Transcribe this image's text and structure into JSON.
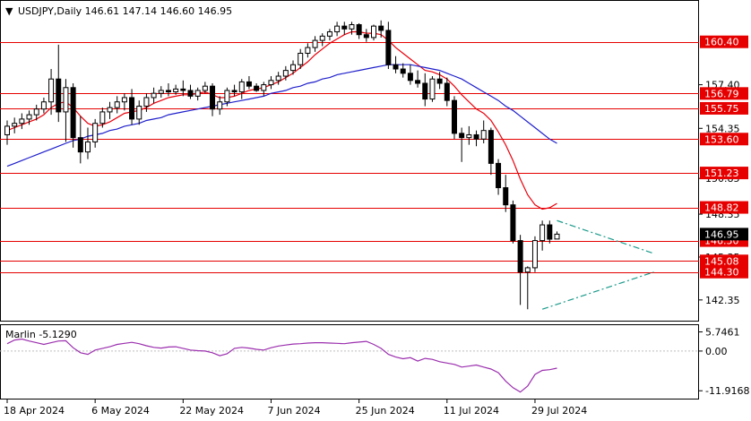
{
  "header": {
    "menu_arrow": "▼",
    "title": "USDJPY,Daily  146.61 147.14 146.60 146.95"
  },
  "colors": {
    "bull": "#ffffff",
    "bear": "#000000",
    "fast_ma": "#e8000b",
    "slow_ma": "#1f1fcc",
    "level_line": "#e60000",
    "level_label": "#e60000",
    "triangle": "#1a9a8a",
    "oscillator": "#9b2fae",
    "current_label": "#000000"
  },
  "chart_data": [
    {
      "type": "candlestick",
      "symbol": "USDJPY",
      "timeframe": "Daily",
      "ohlc_header": {
        "open": 146.61,
        "high": 147.14,
        "low": 146.6,
        "close": 146.95
      },
      "ylim": [
        140.9,
        163.2
      ],
      "y_ticks": [
        {
          "label": "157.40",
          "value": 157.4
        },
        {
          "label": "154.35",
          "value": 154.35
        },
        {
          "label": "150.85",
          "value": 150.85
        },
        {
          "label": "148.35",
          "value": 148.35
        },
        {
          "label": "145.35",
          "value": 145.35
        },
        {
          "label": "142.35",
          "value": 142.35
        }
      ],
      "x_ticks": [
        {
          "label": "18 Apr 2024",
          "bar": 0
        },
        {
          "label": "6 May 2024",
          "bar": 12
        },
        {
          "label": "22 May 2024",
          "bar": 24
        },
        {
          "label": "7 Jun 2024",
          "bar": 36
        },
        {
          "label": "25 Jun 2024",
          "bar": 48
        },
        {
          "label": "11 Jul 2024",
          "bar": 60
        },
        {
          "label": "29 Jul 2024",
          "bar": 72
        }
      ],
      "horizontal_levels": [
        {
          "label": "160.40",
          "value": 160.4
        },
        {
          "label": "156.79",
          "value": 156.79
        },
        {
          "label": "155.75",
          "value": 155.75
        },
        {
          "label": "153.60",
          "value": 153.6
        },
        {
          "label": "151.23",
          "value": 151.23
        },
        {
          "label": "148.82",
          "value": 148.82
        },
        {
          "label": "146.50",
          "value": 146.5
        },
        {
          "label": "145.08",
          "value": 145.08
        },
        {
          "label": "144.30",
          "value": 144.3
        }
      ],
      "current_price": {
        "label": "146.95",
        "value": 146.95
      },
      "candles": [
        [
          153.9,
          154.9,
          153.2,
          154.5
        ],
        [
          154.5,
          155.1,
          154.0,
          154.7
        ],
        [
          154.7,
          155.4,
          154.3,
          155.0
        ],
        [
          155.0,
          155.6,
          154.6,
          155.3
        ],
        [
          155.3,
          156.0,
          154.9,
          155.7
        ],
        [
          155.7,
          156.5,
          155.4,
          156.2
        ],
        [
          156.2,
          158.5,
          155.3,
          157.8
        ],
        [
          157.8,
          160.2,
          154.8,
          155.5
        ],
        [
          155.5,
          157.8,
          153.4,
          157.2
        ],
        [
          157.2,
          157.5,
          153.0,
          153.7
        ],
        [
          153.7,
          155.2,
          151.9,
          152.7
        ],
        [
          152.7,
          154.4,
          152.2,
          153.4
        ],
        [
          153.4,
          155.0,
          153.0,
          154.7
        ],
        [
          154.7,
          155.8,
          154.4,
          155.5
        ],
        [
          155.5,
          156.2,
          155.0,
          155.8
        ],
        [
          155.8,
          156.6,
          155.4,
          156.2
        ],
        [
          156.2,
          156.8,
          155.6,
          156.5
        ],
        [
          156.5,
          157.1,
          154.6,
          155.0
        ],
        [
          155.0,
          156.3,
          154.6,
          155.9
        ],
        [
          155.9,
          156.8,
          155.5,
          156.5
        ],
        [
          156.5,
          157.2,
          156.1,
          156.8
        ],
        [
          156.8,
          157.3,
          156.5,
          157.0
        ],
        [
          157.0,
          157.5,
          156.6,
          156.9
        ],
        [
          156.9,
          157.4,
          156.7,
          157.1
        ],
        [
          157.1,
          157.7,
          156.6,
          157.0
        ],
        [
          157.0,
          157.4,
          156.4,
          156.6
        ],
        [
          156.6,
          157.2,
          156.3,
          157.0
        ],
        [
          157.0,
          157.6,
          156.8,
          157.3
        ],
        [
          157.3,
          157.5,
          155.2,
          155.7
        ],
        [
          155.7,
          156.6,
          155.3,
          156.2
        ],
        [
          156.2,
          157.2,
          155.9,
          157.0
        ],
        [
          157.0,
          157.4,
          156.6,
          156.9
        ],
        [
          156.9,
          157.8,
          156.4,
          157.6
        ],
        [
          157.6,
          158.0,
          157.1,
          157.3
        ],
        [
          157.3,
          157.5,
          156.9,
          157.0
        ],
        [
          157.0,
          157.6,
          156.6,
          157.4
        ],
        [
          157.4,
          158.0,
          157.1,
          157.7
        ],
        [
          157.7,
          158.3,
          157.4,
          158.0
        ],
        [
          158.0,
          158.7,
          157.7,
          158.4
        ],
        [
          158.4,
          159.1,
          158.1,
          158.8
        ],
        [
          158.8,
          159.9,
          158.5,
          159.6
        ],
        [
          159.6,
          160.3,
          159.3,
          160.0
        ],
        [
          160.0,
          160.8,
          159.7,
          160.5
        ],
        [
          160.5,
          161.0,
          160.1,
          160.8
        ],
        [
          160.8,
          161.3,
          160.5,
          161.1
        ],
        [
          161.1,
          161.8,
          160.8,
          161.5
        ],
        [
          161.5,
          161.8,
          160.9,
          161.3
        ],
        [
          161.3,
          161.8,
          160.9,
          161.6
        ],
        [
          161.6,
          161.7,
          160.6,
          160.9
        ],
        [
          160.9,
          161.3,
          160.4,
          160.7
        ],
        [
          160.7,
          161.6,
          160.5,
          161.5
        ],
        [
          161.5,
          161.9,
          160.7,
          161.2
        ],
        [
          161.2,
          161.8,
          158.5,
          158.8
        ],
        [
          158.8,
          159.4,
          158.2,
          158.5
        ],
        [
          158.5,
          158.9,
          157.9,
          158.2
        ],
        [
          158.2,
          158.8,
          157.4,
          157.7
        ],
        [
          157.7,
          158.4,
          157.2,
          157.5
        ],
        [
          157.5,
          158.2,
          155.9,
          156.4
        ],
        [
          156.4,
          158.0,
          156.2,
          157.8
        ],
        [
          157.8,
          158.3,
          157.1,
          157.5
        ],
        [
          157.5,
          157.9,
          155.9,
          156.3
        ],
        [
          156.3,
          156.6,
          153.6,
          154.0
        ],
        [
          154.0,
          154.4,
          152.0,
          153.7
        ],
        [
          153.7,
          154.5,
          153.2,
          153.9
        ],
        [
          153.9,
          154.2,
          153.1,
          153.6
        ],
        [
          153.6,
          154.9,
          153.3,
          154.2
        ],
        [
          154.2,
          154.4,
          151.1,
          151.9
        ],
        [
          151.9,
          152.2,
          149.7,
          150.2
        ],
        [
          150.2,
          151.1,
          148.5,
          149.0
        ],
        [
          149.0,
          149.3,
          146.3,
          146.5
        ],
        [
          146.5,
          146.9,
          142.0,
          144.3
        ],
        [
          144.3,
          144.7,
          141.7,
          144.6
        ],
        [
          144.6,
          146.8,
          144.3,
          146.5
        ],
        [
          146.5,
          147.9,
          145.8,
          147.6
        ],
        [
          147.6,
          147.9,
          146.3,
          146.6
        ],
        [
          146.61,
          147.14,
          146.6,
          146.95
        ]
      ],
      "series": [
        {
          "name": "",
          "type": "ma",
          "values": [
            154.2,
            154.4,
            154.6,
            154.8,
            155.0,
            155.3,
            155.8,
            156.1,
            156.2,
            155.8,
            155.2,
            154.7,
            154.5,
            154.6,
            154.8,
            155.1,
            155.4,
            155.5,
            155.6,
            155.8,
            156.1,
            156.3,
            156.5,
            156.6,
            156.7,
            156.7,
            156.8,
            156.9,
            156.7,
            156.5,
            156.5,
            156.6,
            156.8,
            157.0,
            157.1,
            157.2,
            157.4,
            157.6,
            157.9,
            158.2,
            158.6,
            159.0,
            159.5,
            159.9,
            160.3,
            160.6,
            160.9,
            161.1,
            161.1,
            161.0,
            161.0,
            160.9,
            160.5,
            160.0,
            159.6,
            159.2,
            158.8,
            158.4,
            158.3,
            158.1,
            157.8,
            157.3,
            156.7,
            156.2,
            155.7,
            155.4,
            154.9,
            154.1,
            153.2,
            152.1,
            150.8,
            149.7,
            149.0,
            148.7,
            148.8,
            149.1
          ]
        },
        {
          "name": "",
          "type": "ma",
          "values": [
            151.7,
            151.9,
            152.1,
            152.3,
            152.5,
            152.7,
            152.9,
            153.1,
            153.3,
            153.5,
            153.6,
            153.8,
            153.9,
            154.0,
            154.2,
            154.3,
            154.5,
            154.6,
            154.7,
            154.9,
            155.0,
            155.1,
            155.3,
            155.4,
            155.5,
            155.6,
            155.7,
            155.8,
            155.9,
            156.0,
            156.1,
            156.2,
            156.3,
            156.4,
            156.5,
            156.6,
            156.8,
            156.9,
            157.0,
            157.2,
            157.3,
            157.5,
            157.6,
            157.8,
            157.9,
            158.1,
            158.2,
            158.3,
            158.4,
            158.5,
            158.6,
            158.7,
            158.8,
            158.8,
            158.8,
            158.8,
            158.7,
            158.6,
            158.5,
            158.4,
            158.2,
            158.0,
            157.8,
            157.5,
            157.2,
            156.9,
            156.6,
            156.3,
            155.9,
            155.6,
            155.2,
            154.8,
            154.4,
            154.0,
            153.6,
            153.3
          ]
        }
      ],
      "triangle_lines": [
        {
          "from": {
            "bar": 75,
            "value": 147.9
          },
          "to": {
            "bar": 88.2,
            "value": 145.6
          }
        },
        {
          "from": {
            "bar": 73,
            "value": 141.7
          },
          "to": {
            "bar": 88.2,
            "value": 144.3
          }
        }
      ]
    },
    {
      "type": "line",
      "title": "Marlin  -5.1290",
      "ylim": [
        -14.0,
        7.5
      ],
      "y_ticks": [
        {
          "label": "5.7461",
          "value": 5.7461
        },
        {
          "label": "0.00",
          "value": 0.0
        },
        {
          "label": "-11.9168",
          "value": -11.9168
        }
      ],
      "zero_line": 0.0,
      "series": [
        {
          "name": "",
          "values": [
            2.2,
            3.3,
            3.6,
            3.0,
            2.5,
            2.0,
            2.5,
            3.0,
            3.1,
            1.0,
            -0.5,
            -1.0,
            0.3,
            0.8,
            1.3,
            2.0,
            2.3,
            2.6,
            2.2,
            1.6,
            1.1,
            0.9,
            1.2,
            1.3,
            0.8,
            0.3,
            0.1,
            0.0,
            -0.5,
            -1.4,
            -0.8,
            0.8,
            1.1,
            0.9,
            0.5,
            0.3,
            1.0,
            1.5,
            1.8,
            2.1,
            2.2,
            2.4,
            2.5,
            2.5,
            2.4,
            2.3,
            2.2,
            2.5,
            2.7,
            2.9,
            2.0,
            0.8,
            -1.0,
            -1.8,
            -2.3,
            -2.0,
            -3.0,
            -2.2,
            -2.5,
            -3.2,
            -3.6,
            -4.0,
            -4.8,
            -4.5,
            -4.2,
            -4.8,
            -5.4,
            -6.5,
            -9.0,
            -11.0,
            -12.3,
            -10.5,
            -7.0,
            -5.8,
            -5.6,
            -5.13
          ]
        }
      ]
    }
  ]
}
